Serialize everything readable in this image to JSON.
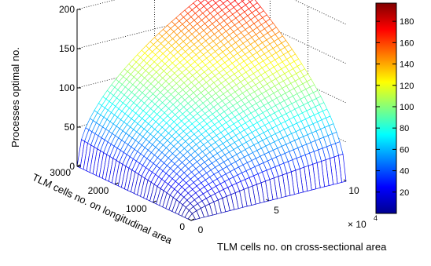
{
  "chart_data": {
    "type": "surface",
    "title": "",
    "xlabel": "TLM cells no. on cross-sectional area",
    "ylabel": "TLM cells no. on longitudinal area",
    "zlabel": "Processes optimal no.",
    "x_multiplier": "× 10",
    "x_multiplier_exp": "4",
    "x_ticks": [
      "0",
      "5",
      "10"
    ],
    "y_ticks": [
      "0",
      "1000",
      "2000",
      "3000"
    ],
    "z_ticks": [
      "0",
      "50",
      "100",
      "150",
      "200"
    ],
    "xlim": [
      0,
      100000
    ],
    "ylim": [
      0,
      3000
    ],
    "zlim": [
      0,
      200
    ],
    "grid": true,
    "colormap": "jet",
    "colorbar": {
      "range": [
        0,
        197
      ],
      "ticks": [
        "20",
        "40",
        "60",
        "80",
        "100",
        "120",
        "140",
        "160",
        "180"
      ],
      "placement": "right"
    },
    "surface_model": "z = 197 * sqrt((x/100000) * (y/3000))",
    "z_max": 197
  }
}
